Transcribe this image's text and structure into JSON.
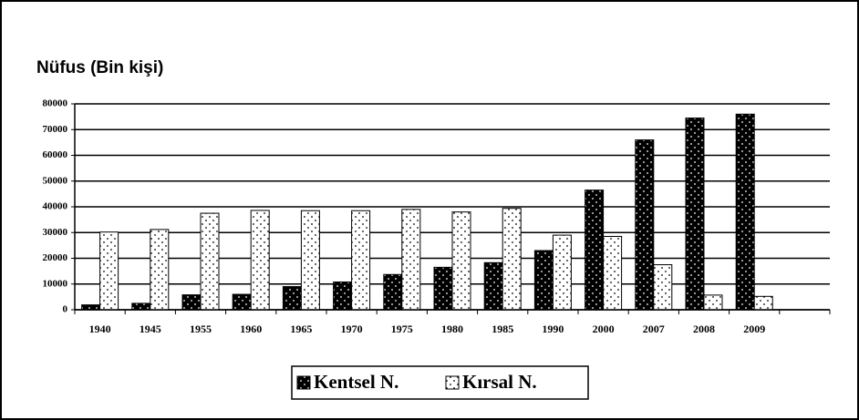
{
  "chart_data": {
    "type": "bar",
    "title": "Nüfus (Bin kişi)",
    "categories": [
      "1940",
      "1945",
      "1955",
      "1960",
      "1965",
      "1970",
      "1975",
      "1980",
      "1985",
      "1990",
      "2000",
      "2007",
      "2008",
      "2009",
      null
    ],
    "series": [
      {
        "name": "Kentsel N.",
        "color": "#000000",
        "values": [
          1900,
          2500,
          5800,
          6000,
          9000,
          10800,
          13700,
          16500,
          18300,
          23000,
          46500,
          66000,
          74500,
          76000,
          null
        ]
      },
      {
        "name": "Kırsal N.",
        "color": "#ffffff",
        "values": [
          30200,
          31200,
          37500,
          38600,
          38500,
          38500,
          39000,
          38000,
          39400,
          29000,
          28500,
          17500,
          5700,
          5200,
          null
        ]
      }
    ],
    "ylim": [
      0,
      80000
    ],
    "yticks": [
      0,
      10000,
      20000,
      30000,
      40000,
      50000,
      60000,
      70000,
      80000
    ],
    "grid": true,
    "legend": "bottom"
  }
}
